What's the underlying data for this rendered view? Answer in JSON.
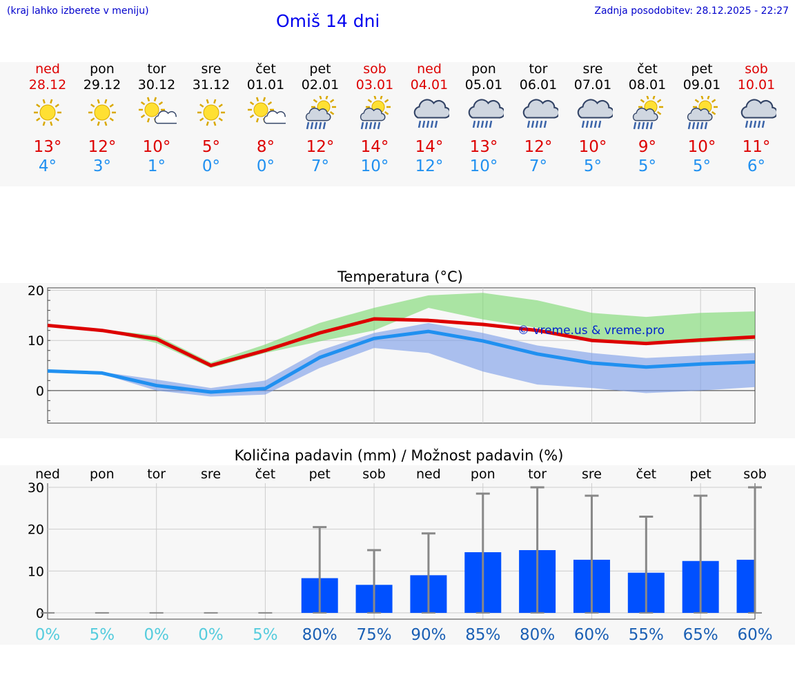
{
  "header": {
    "hint": "(kraj lahko izberete v meniju)",
    "title": "Omiš 14 dni",
    "updated": "Zadnja posodobitev: 28.12.2025 - 22:27"
  },
  "colors": {
    "max": "#dd0000",
    "min": "#2090f0",
    "bar": "#0050ff",
    "weekend": "#dd0000",
    "link": "#0000ee"
  },
  "days": [
    {
      "name": "ned",
      "date": "28.12",
      "weekend": true,
      "icon": "sun-icon",
      "max": "13°",
      "min": "4°"
    },
    {
      "name": "pon",
      "date": "29.12",
      "weekend": false,
      "icon": "sun-icon",
      "max": "12°",
      "min": "3°"
    },
    {
      "name": "tor",
      "date": "30.12",
      "weekend": false,
      "icon": "sun-cloud-icon",
      "max": "10°",
      "min": "1°"
    },
    {
      "name": "sre",
      "date": "31.12",
      "weekend": false,
      "icon": "sun-icon",
      "max": "5°",
      "min": "0°"
    },
    {
      "name": "čet",
      "date": "01.01",
      "weekend": false,
      "icon": "sun-cloud-icon",
      "max": "8°",
      "min": "0°"
    },
    {
      "name": "pet",
      "date": "02.01",
      "weekend": false,
      "icon": "sun-rain-icon",
      "max": "12°",
      "min": "7°"
    },
    {
      "name": "sob",
      "date": "03.01",
      "weekend": true,
      "icon": "sun-rain-icon",
      "max": "14°",
      "min": "10°"
    },
    {
      "name": "ned",
      "date": "04.01",
      "weekend": true,
      "icon": "cloud-rain-icon",
      "max": "14°",
      "min": "12°"
    },
    {
      "name": "pon",
      "date": "05.01",
      "weekend": false,
      "icon": "cloud-rain-icon",
      "max": "13°",
      "min": "10°"
    },
    {
      "name": "tor",
      "date": "06.01",
      "weekend": false,
      "icon": "cloud-rain-icon",
      "max": "12°",
      "min": "7°"
    },
    {
      "name": "sre",
      "date": "07.01",
      "weekend": false,
      "icon": "cloud-rain-icon",
      "max": "10°",
      "min": "5°"
    },
    {
      "name": "čet",
      "date": "08.01",
      "weekend": false,
      "icon": "sun-rain-icon",
      "max": "9°",
      "min": "5°"
    },
    {
      "name": "pet",
      "date": "09.01",
      "weekend": false,
      "icon": "sun-rain-icon",
      "max": "10°",
      "min": "5°"
    },
    {
      "name": "sob",
      "date": "10.01",
      "weekend": true,
      "icon": "cloud-rain-icon",
      "max": "11°",
      "min": "6°"
    }
  ],
  "chart_data": [
    {
      "type": "line",
      "title": "Temperatura (°C)",
      "watermark": "© vreme.us & vreme.pro",
      "x": [
        0,
        1,
        2,
        3,
        4,
        5,
        6,
        7,
        8,
        9,
        10,
        11,
        12,
        13
      ],
      "ylim": [
        -6.5,
        20.5
      ],
      "yticks": [
        0,
        10,
        20
      ],
      "grid": true,
      "series": [
        {
          "name": "max",
          "values": [
            13,
            12,
            10.3,
            5,
            8,
            11.5,
            14.3,
            14,
            13.2,
            12,
            10,
            9.4,
            10.1,
            10.7
          ]
        },
        {
          "name": "min",
          "values": [
            3.9,
            3.5,
            1,
            -0.3,
            0.4,
            6.6,
            10.4,
            11.8,
            9.9,
            7.3,
            5.5,
            4.7,
            5.3,
            5.7
          ]
        },
        {
          "name": "max_range_low",
          "values": [
            13,
            12,
            9.5,
            4.5,
            7.5,
            9.8,
            12,
            16.5,
            14.2,
            12.5,
            10,
            9.2,
            9.6,
            10.2
          ]
        },
        {
          "name": "max_range_high",
          "values": [
            13.2,
            12.2,
            11,
            5.6,
            9.2,
            13.5,
            16.5,
            19,
            19.5,
            18,
            15.5,
            14.7,
            15.5,
            15.8
          ]
        },
        {
          "name": "min_range_low",
          "values": [
            3.7,
            3.3,
            0,
            -1.2,
            -0.8,
            4.5,
            8.5,
            7.5,
            3.8,
            1.2,
            0.5,
            -0.5,
            0,
            0.7
          ]
        },
        {
          "name": "min_range_high",
          "values": [
            4.1,
            3.7,
            2.2,
            0.5,
            2,
            8,
            11.5,
            13.5,
            11.5,
            9,
            7.5,
            6.5,
            7,
            7.5
          ]
        }
      ]
    },
    {
      "type": "bar",
      "title": "Količina padavin (mm) / Možnost padavin (%)",
      "categories": [
        "ned",
        "pon",
        "tor",
        "sre",
        "čet",
        "pet",
        "sob",
        "ned",
        "pon",
        "tor",
        "sre",
        "čet",
        "pet",
        "sob"
      ],
      "ylim": [
        -1.5,
        31
      ],
      "yticks": [
        0,
        10,
        20,
        30
      ],
      "grid": true,
      "series": [
        {
          "name": "amount_mm",
          "values": [
            0,
            0,
            0,
            0,
            0,
            8.3,
            6.7,
            9,
            14.5,
            15,
            12.7,
            9.6,
            12.4,
            12.7
          ]
        },
        {
          "name": "max_mm",
          "values": [
            0,
            0,
            0,
            0,
            0,
            20.5,
            15,
            19,
            28.5,
            30,
            28,
            23,
            28,
            30
          ]
        }
      ],
      "probability": [
        "0%",
        "5%",
        "0%",
        "0%",
        "5%",
        "80%",
        "75%",
        "90%",
        "85%",
        "80%",
        "60%",
        "55%",
        "65%",
        "60%"
      ]
    }
  ]
}
